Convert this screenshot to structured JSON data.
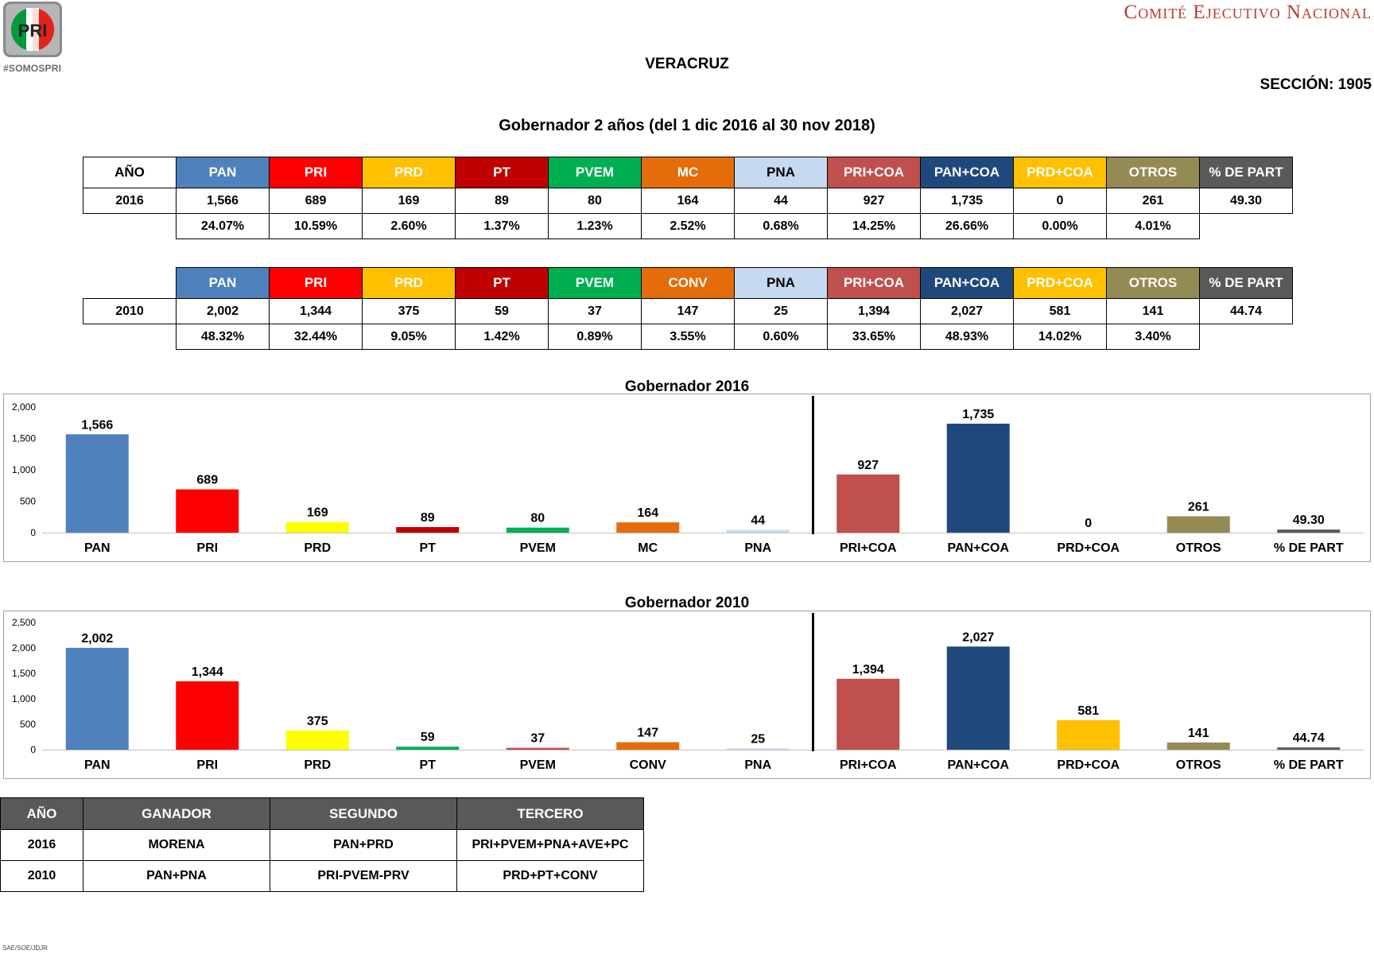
{
  "header": {
    "hashtag": "#SOMOSPRI",
    "logo_text": "PRI",
    "org": "Comité Ejecutivo Nacional",
    "state": "VERACRUZ",
    "section": "SECCIÓN: 1905",
    "subtitle": "Gobernador 2 años (del 1 dic 2016 al 30 nov 2018)"
  },
  "colors": {
    "PAN": "#4f81bd",
    "PRI": "#ff0000",
    "PRD": "#ffc000",
    "PT": "#c00000",
    "PVEM": "#00b050",
    "MC": "#e46c0a",
    "CONV": "#e46c0a",
    "PNA": "#c5d9f1",
    "PRI+COA": "#c0504d",
    "PAN+COA": "#1f497d",
    "PRD+COA": "#ffc000",
    "OTROS": "#948a54",
    "% DE PART": "#595959"
  },
  "tables": [
    {
      "year_header": "AÑO",
      "year": "2016",
      "headers": [
        "PAN",
        "PRI",
        "PRD",
        "PT",
        "PVEM",
        "MC",
        "PNA",
        "PRI+COA",
        "PAN+COA",
        "PRD+COA",
        "OTROS",
        "% DE PART"
      ],
      "votes": [
        "1,566",
        "689",
        "169",
        "89",
        "80",
        "164",
        "44",
        "927",
        "1,735",
        "0",
        "261",
        "49.30"
      ],
      "pcts": [
        "24.07%",
        "10.59%",
        "2.60%",
        "1.37%",
        "1.23%",
        "2.52%",
        "0.68%",
        "14.25%",
        "26.66%",
        "0.00%",
        "4.01%"
      ]
    },
    {
      "year_header": "",
      "year": "2010",
      "headers": [
        "PAN",
        "PRI",
        "PRD",
        "PT",
        "PVEM",
        "CONV",
        "PNA",
        "PRI+COA",
        "PAN+COA",
        "PRD+COA",
        "OTROS",
        "% DE PART"
      ],
      "votes": [
        "2,002",
        "1,344",
        "375",
        "59",
        "37",
        "147",
        "25",
        "1,394",
        "2,027",
        "581",
        "141",
        "44.74"
      ],
      "pcts": [
        "48.32%",
        "32.44%",
        "9.05%",
        "1.42%",
        "0.89%",
        "3.55%",
        "0.60%",
        "33.65%",
        "48.93%",
        "14.02%",
        "3.40%"
      ]
    }
  ],
  "chart_data": [
    {
      "type": "bar",
      "title": "Gobernador  2016",
      "categories": [
        "PAN",
        "PRI",
        "PRD",
        "PT",
        "PVEM",
        "MC",
        "PNA",
        "PRI+COA",
        "PAN+COA",
        "PRD+COA",
        "OTROS",
        "% DE PART"
      ],
      "values": [
        1566,
        689,
        169,
        89,
        80,
        164,
        44,
        927,
        1735,
        0,
        261,
        49.3
      ],
      "value_labels": [
        "1,566",
        "689",
        "169",
        "89",
        "80",
        "164",
        "44",
        "927",
        "1,735",
        "0",
        "261",
        "49.30"
      ],
      "bar_colors": [
        "#4f81bd",
        "#ff0000",
        "#ffff00",
        "#c00000",
        "#00b050",
        "#e46c0a",
        "#c5d9f1",
        "#c0504d",
        "#1f497d",
        "#ffc000",
        "#948a54",
        "#595959"
      ],
      "yticks": [
        "0",
        "500",
        "1,000",
        "1,500",
        "2,000"
      ],
      "ylim": [
        0,
        2000
      ],
      "divider_after_index": 6,
      "grid": false
    },
    {
      "type": "bar",
      "title": "Gobernador  2010",
      "categories": [
        "PAN",
        "PRI",
        "PRD",
        "PT",
        "PVEM",
        "CONV",
        "PNA",
        "PRI+COA",
        "PAN+COA",
        "PRD+COA",
        "OTROS",
        "% DE PART"
      ],
      "values": [
        2002,
        1344,
        375,
        59,
        37,
        147,
        25,
        1394,
        2027,
        581,
        141,
        44.74
      ],
      "value_labels": [
        "2,002",
        "1,344",
        "375",
        "59",
        "37",
        "147",
        "25",
        "1,394",
        "2,027",
        "581",
        "141",
        "44.74"
      ],
      "bar_colors": [
        "#4f81bd",
        "#ff0000",
        "#ffff00",
        "#00b050",
        "#c0504d",
        "#e46c0a",
        "#c5d9f1",
        "#c0504d",
        "#1f497d",
        "#ffc000",
        "#948a54",
        "#595959"
      ],
      "yticks": [
        "0",
        "500",
        "1,000",
        "1,500",
        "2,000",
        "2,500"
      ],
      "ylim": [
        0,
        2500
      ],
      "divider_after_index": 6,
      "grid": false
    }
  ],
  "winners": {
    "headers": [
      "AÑO",
      "GANADOR",
      "SEGUNDO",
      "TERCERO"
    ],
    "rows": [
      [
        "2016",
        "MORENA",
        "PAN+PRD",
        "PRI+PVEM+PNA+AVE+PC"
      ],
      [
        "2010",
        "PAN+PNA",
        "PRI-PVEM-PRV",
        "PRD+PT+CONV"
      ]
    ]
  },
  "footer": "SAE/SOE/JDJR"
}
